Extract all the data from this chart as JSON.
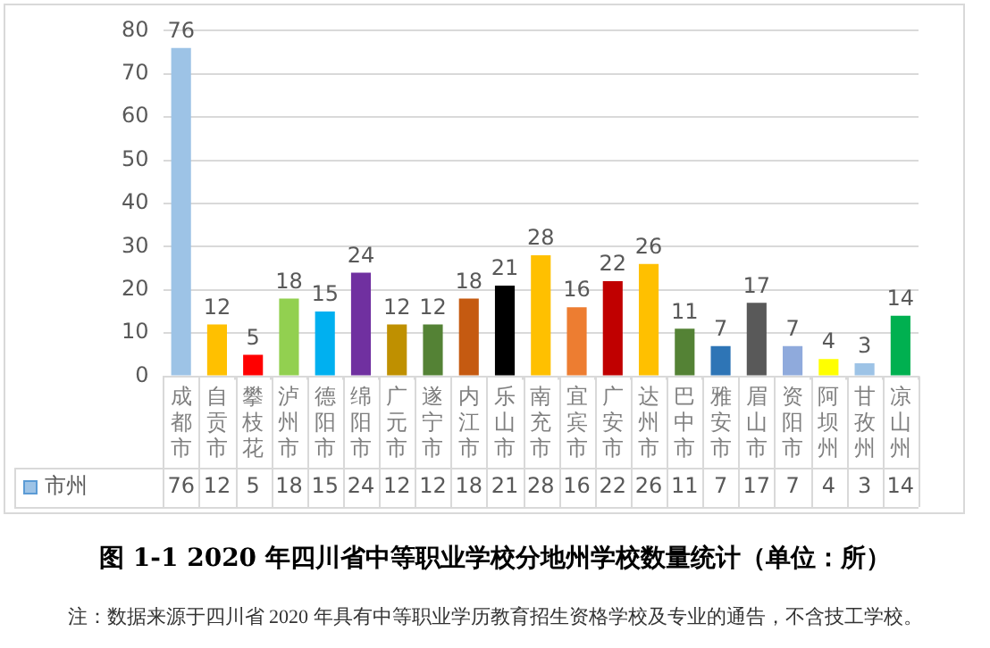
{
  "chart_data": {
    "type": "bar",
    "title": "图 1-1 2020 年四川省中等职业学校分地州学校数量统计（单位：所）",
    "annotations": [
      "注：数据来源于四川省 2020 年具有中等职业学历教育招生资格学校及专业的通告，不含技工学校。",
      "76",
      "12",
      "5",
      "18",
      "15",
      "24",
      "12",
      "12",
      "18",
      "21",
      "28",
      "16",
      "22",
      "26",
      "11",
      "7",
      "17",
      "7",
      "4",
      "3",
      "14"
    ],
    "categories": [
      "成都市",
      "自贡市",
      "攀枝花",
      "泸州市",
      "德阳市",
      "绵阳市",
      "广元市",
      "遂宁市",
      "内江市",
      "乐山市",
      "南充市",
      "宜宾市",
      "广安市",
      "达州市",
      "巴中市",
      "雅安市",
      "眉山市",
      "资阳市",
      "阿坝州",
      "甘孜州",
      "凉山州"
    ],
    "series": [
      {
        "name": "市州",
        "color": "#9dc3e6",
        "values": [
          76,
          12,
          5,
          18,
          15,
          24,
          12,
          12,
          18,
          21,
          28,
          16,
          22,
          26,
          11,
          7,
          17,
          7,
          4,
          3,
          14
        ],
        "colors": [
          "#9dc3e6",
          "#ffc000",
          "#ff0000",
          "#92d050",
          "#00b0f0",
          "#7030a0",
          "#bf9000",
          "#548235",
          "#c55a11",
          "#000000",
          "#ffc000",
          "#ed7d31",
          "#c00000",
          "#ffc000",
          "#548235",
          "#2e75b6",
          "#595959",
          "#8faadc",
          "#ffff00",
          "#9dc3e6",
          "#00b050"
        ]
      }
    ],
    "ylim": [
      0,
      80
    ],
    "yticks": [
      0,
      10,
      20,
      30,
      40,
      50,
      60,
      70,
      80
    ],
    "grid": "y",
    "legend": "bottom",
    "data_labels": true
  }
}
